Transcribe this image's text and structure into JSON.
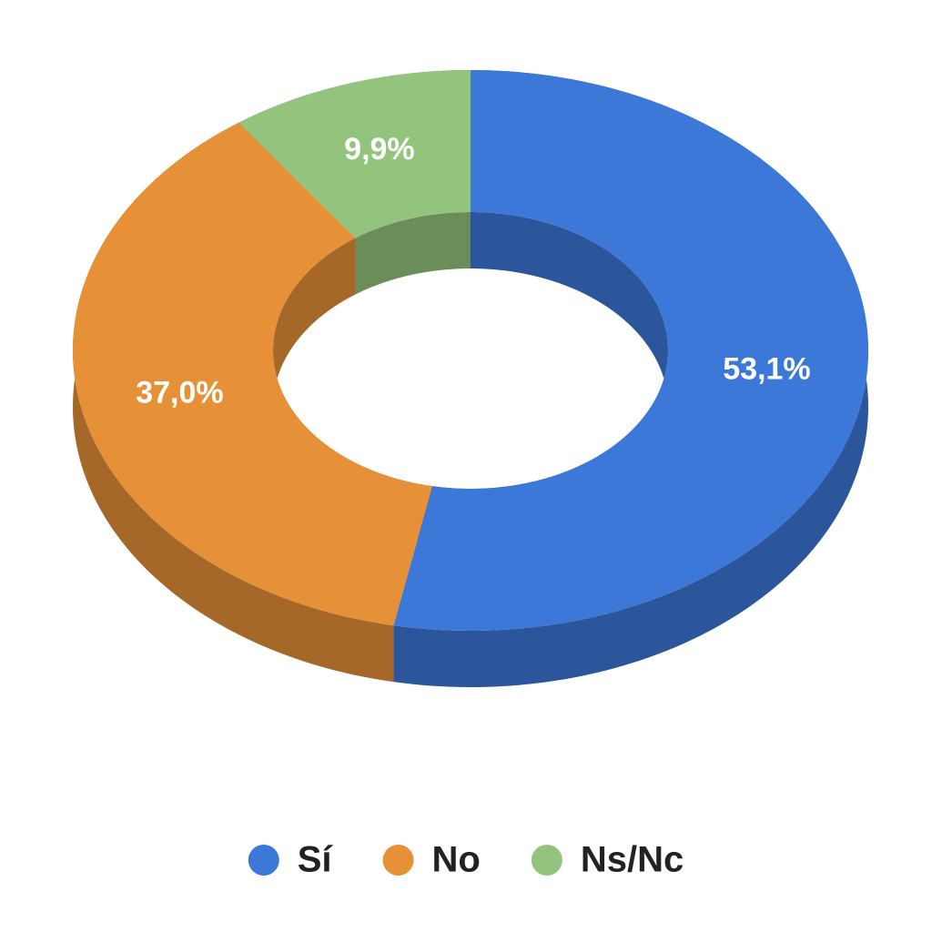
{
  "chart_data": {
    "type": "pie",
    "donut": true,
    "categories": [
      "Sí",
      "No",
      "Ns/Nc"
    ],
    "values": [
      53.1,
      37.0,
      9.9
    ],
    "value_labels": [
      "53,1%",
      "37,0%",
      "9,9%"
    ],
    "colors": [
      "#3c78d8",
      "#e69138",
      "#93c47d"
    ]
  }
}
